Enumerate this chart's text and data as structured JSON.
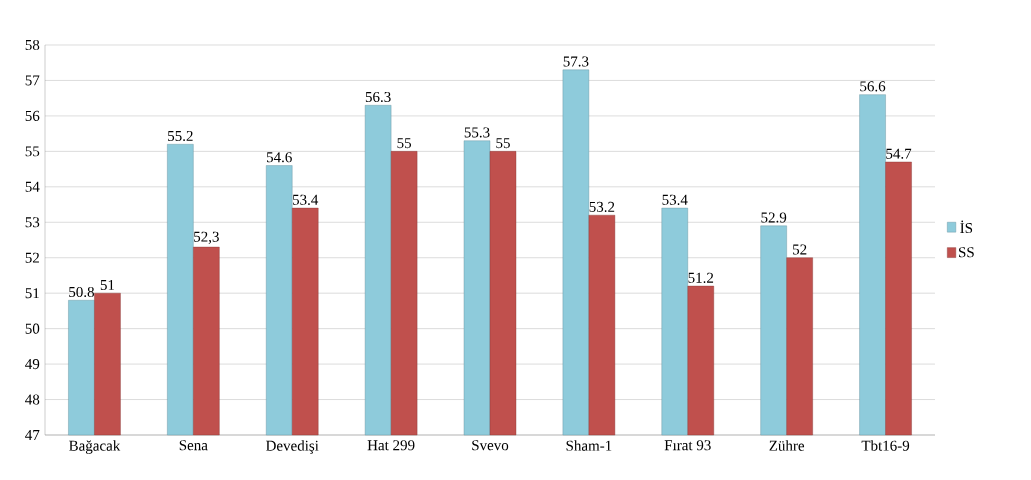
{
  "chart_data": {
    "type": "bar",
    "categories": [
      "Bağacak",
      "Sena",
      "Devedişi",
      "Hat 299",
      "Svevo",
      "Sham-1",
      "Fırat 93",
      "Zühre",
      "Tbt16-9"
    ],
    "series": [
      {
        "name": "İS",
        "color": "#8ecbdb",
        "values": [
          50.8,
          55.2,
          54.6,
          56.3,
          55.3,
          57.3,
          53.4,
          52.9,
          56.6
        ],
        "value_labels": [
          "50.8",
          "55.2",
          "54.6",
          "56.3",
          "55.3",
          "57.3",
          "53.4",
          "52.9",
          "56.6"
        ]
      },
      {
        "name": "SS",
        "color": "#c0504d",
        "values": [
          51,
          52.3,
          53.4,
          55,
          55,
          53.2,
          51.2,
          52,
          54.7
        ],
        "value_labels": [
          "51",
          "52,3",
          "53.4",
          "55",
          "55",
          "53.2",
          "51.2",
          "52",
          "54.7"
        ]
      }
    ],
    "ylim": [
      47,
      58
    ],
    "yticks": [
      47,
      48,
      49,
      50,
      51,
      52,
      53,
      54,
      55,
      56,
      57,
      58
    ],
    "grid": "y",
    "legend": "right"
  }
}
